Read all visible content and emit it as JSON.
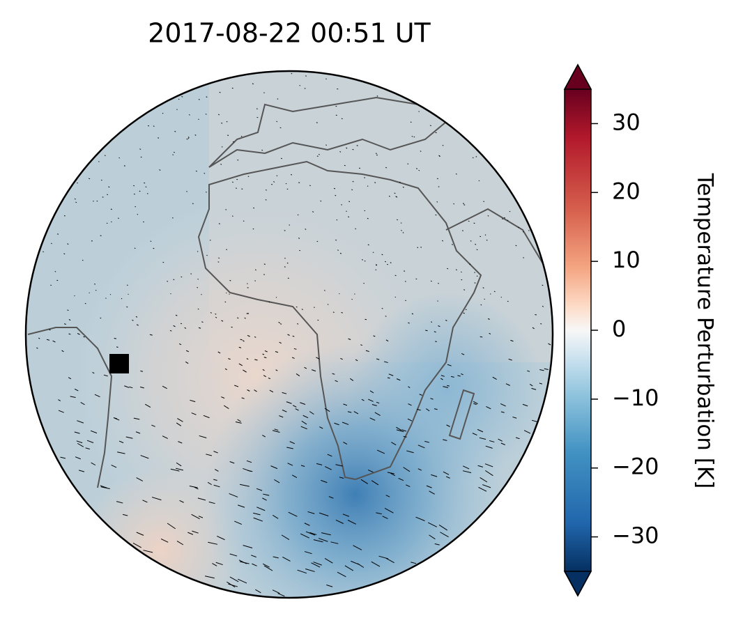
{
  "chart_data": {
    "type": "map",
    "title": "2017-08-22  00:51 UT",
    "colorbar": {
      "label": "Temperature Perturbation [K]",
      "lim": [
        -35,
        35
      ],
      "ticks": [
        {
          "value": -30,
          "label": "−30"
        },
        {
          "value": -20,
          "label": "−20"
        },
        {
          "value": -10,
          "label": "−10"
        },
        0,
        10,
        20,
        30
      ]
    }
  }
}
